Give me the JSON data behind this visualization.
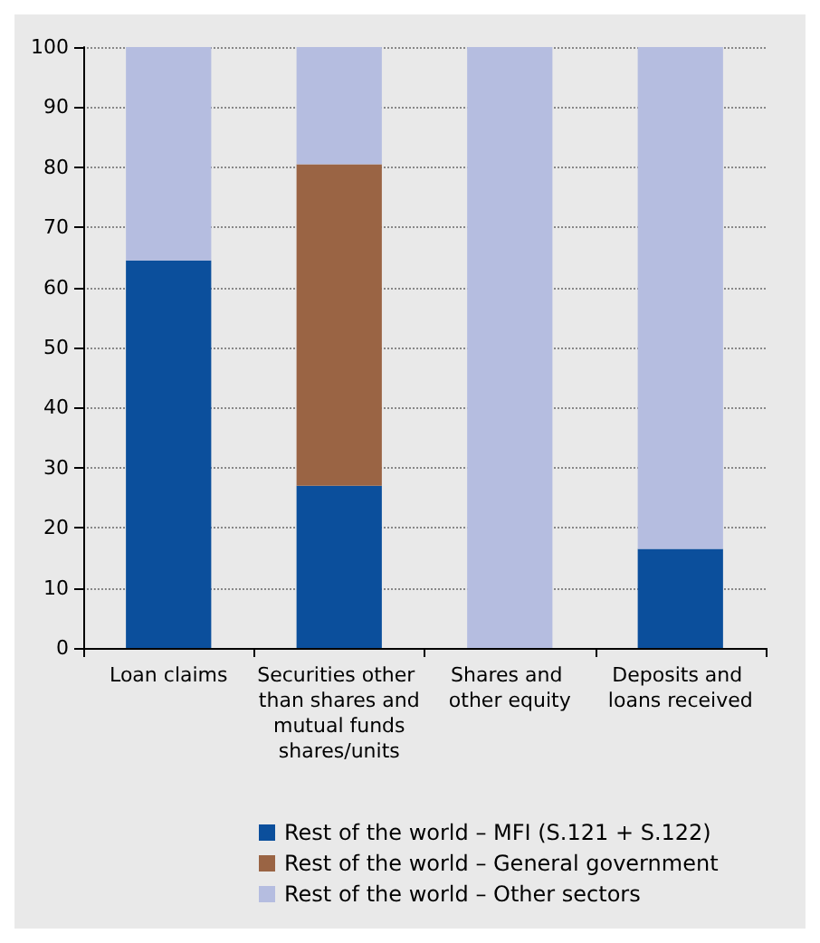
{
  "chart_data": {
    "type": "bar",
    "stacked": true,
    "categories": [
      "Loan claims",
      "Securities other than shares and mutual funds shares/units",
      "Shares and other equity",
      "Deposits and loans received"
    ],
    "series": [
      {
        "name": "Rest of the world – MFI (S.121 + S.122)",
        "color": "#0b4f9c",
        "values": [
          64.5,
          27,
          0,
          16.5
        ]
      },
      {
        "name": "Rest of the world – General government",
        "color": "#9a6444",
        "values": [
          0,
          53.5,
          0,
          0
        ]
      },
      {
        "name": "Rest of the world – Other sectors",
        "color": "#b5bde0",
        "values": [
          35.5,
          19.5,
          100,
          83.5
        ]
      }
    ],
    "ylim": [
      0,
      100
    ],
    "yticks": [
      0,
      10,
      20,
      30,
      40,
      50,
      60,
      70,
      80,
      90,
      100
    ],
    "grid": "y",
    "legend": "bottom"
  }
}
